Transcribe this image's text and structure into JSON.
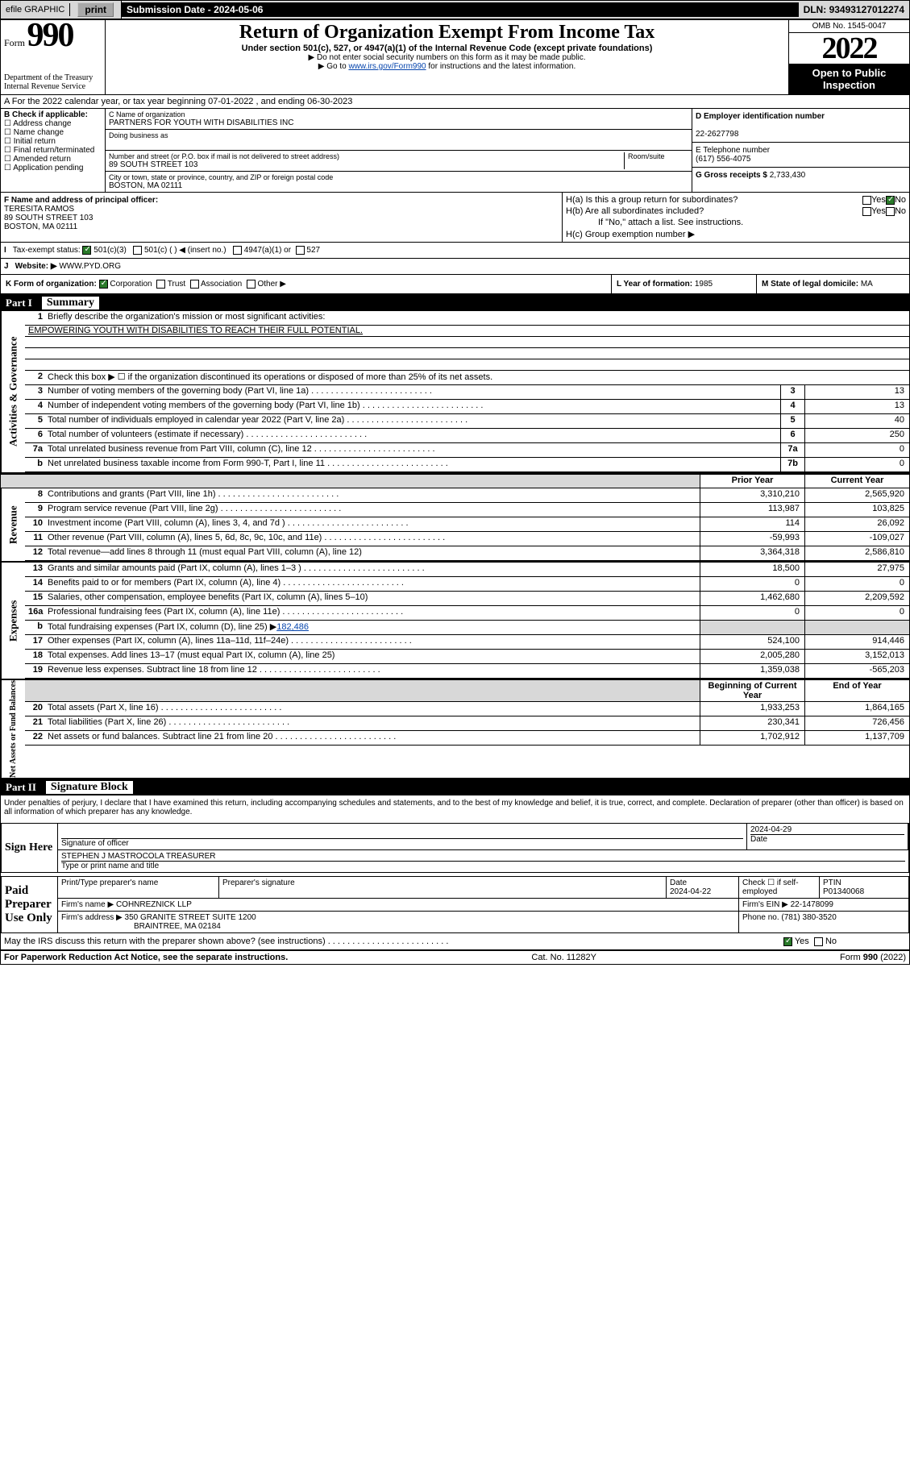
{
  "topbar": {
    "efile": "efile GRAPHIC",
    "print": "print",
    "subdate_label": "Submission Date - ",
    "subdate": "2024-05-06",
    "dln_label": "DLN: ",
    "dln": "93493127012274"
  },
  "header": {
    "form_label": "Form",
    "form_num": "990",
    "dept": "Department of the Treasury\nInternal Revenue Service",
    "title": "Return of Organization Exempt From Income Tax",
    "sub": "Under section 501(c), 527, or 4947(a)(1) of the Internal Revenue Code (except private foundations)",
    "note1": "▶ Do not enter social security numbers on this form as it may be made public.",
    "note2_pre": "▶ Go to ",
    "note2_link": "www.irs.gov/Form990",
    "note2_post": " for instructions and the latest information.",
    "omb": "OMB No. 1545-0047",
    "year": "2022",
    "open": "Open to Public Inspection"
  },
  "rowA": "A For the 2022 calendar year, or tax year beginning 07-01-2022   , and ending 06-30-2023",
  "colB": {
    "label": "B Check if applicable:",
    "items": [
      "Address change",
      "Name change",
      "Initial return",
      "Final return/terminated",
      "Amended return",
      "Application pending"
    ]
  },
  "colC": {
    "name_label": "C Name of organization",
    "name": "PARTNERS FOR YOUTH WITH DISABILITIES INC",
    "dba_label": "Doing business as",
    "addr_label": "Number and street (or P.O. box if mail is not delivered to street address)",
    "room_label": "Room/suite",
    "addr": "89 SOUTH STREET 103",
    "city_label": "City or town, state or province, country, and ZIP or foreign postal code",
    "city": "BOSTON, MA  02111"
  },
  "colD": {
    "ein_label": "D Employer identification number",
    "ein": "22-2627798",
    "tel_label": "E Telephone number",
    "tel": "(617) 556-4075",
    "gross_label": "G Gross receipts $ ",
    "gross": "2,733,430"
  },
  "colF": {
    "label": "F Name and address of principal officer:",
    "name": "TERESITA RAMOS",
    "addr1": "89 SOUTH STREET 103",
    "addr2": "BOSTON, MA  02111"
  },
  "colH": {
    "a": "H(a)  Is this a group return for subordinates?",
    "b": "H(b)  Are all subordinates included?",
    "b_note": "If \"No,\" attach a list. See instructions.",
    "c": "H(c)  Group exemption number ▶"
  },
  "rowI": {
    "label": "Tax-exempt status:",
    "opt1": "501(c)(3)",
    "opt2": "501(c) (  ) ◀ (insert no.)",
    "opt3": "4947(a)(1) or",
    "opt4": "527"
  },
  "rowJ": {
    "label": "Website: ▶",
    "val": "WWW.PYD.ORG"
  },
  "rowK": {
    "label": "K Form of organization:",
    "opts": [
      "Corporation",
      "Trust",
      "Association",
      "Other ▶"
    ],
    "year_label": "L Year of formation: ",
    "year": "1985",
    "state_label": "M State of legal domicile: ",
    "state": "MA"
  },
  "part1": {
    "num": "Part I",
    "title": "Summary"
  },
  "summary": {
    "l1_label": "Briefly describe the organization's mission or most significant activities:",
    "l1_val": "EMPOWERING YOUTH WITH DISABILITIES TO REACH THEIR FULL POTENTIAL.",
    "l2": "Check this box ▶ ☐  if the organization discontinued its operations or disposed of more than 25% of its net assets.",
    "l3": {
      "d": "Number of voting members of the governing body (Part VI, line 1a)",
      "v": "13"
    },
    "l4": {
      "d": "Number of independent voting members of the governing body (Part VI, line 1b)",
      "v": "13"
    },
    "l5": {
      "d": "Total number of individuals employed in calendar year 2022 (Part V, line 2a)",
      "v": "40"
    },
    "l6": {
      "d": "Total number of volunteers (estimate if necessary)",
      "v": "250"
    },
    "l7a": {
      "d": "Total unrelated business revenue from Part VIII, column (C), line 12",
      "v": "0"
    },
    "l7b": {
      "d": "Net unrelated business taxable income from Form 990-T, Part I, line 11",
      "v": "0"
    }
  },
  "revexp_hdr": {
    "prior": "Prior Year",
    "current": "Current Year"
  },
  "revenue": {
    "8": {
      "d": "Contributions and grants (Part VIII, line 1h)",
      "p": "3,310,210",
      "c": "2,565,920"
    },
    "9": {
      "d": "Program service revenue (Part VIII, line 2g)",
      "p": "113,987",
      "c": "103,825"
    },
    "10": {
      "d": "Investment income (Part VIII, column (A), lines 3, 4, and 7d )",
      "p": "114",
      "c": "26,092"
    },
    "11": {
      "d": "Other revenue (Part VIII, column (A), lines 5, 6d, 8c, 9c, 10c, and 11e)",
      "p": "-59,993",
      "c": "-109,027"
    },
    "12": {
      "d": "Total revenue—add lines 8 through 11 (must equal Part VIII, column (A), line 12)",
      "p": "3,364,318",
      "c": "2,586,810"
    }
  },
  "expenses": {
    "13": {
      "d": "Grants and similar amounts paid (Part IX, column (A), lines 1–3 )",
      "p": "18,500",
      "c": "27,975"
    },
    "14": {
      "d": "Benefits paid to or for members (Part IX, column (A), line 4)",
      "p": "0",
      "c": "0"
    },
    "15": {
      "d": "Salaries, other compensation, employee benefits (Part IX, column (A), lines 5–10)",
      "p": "1,462,680",
      "c": "2,209,592"
    },
    "16a": {
      "d": "Professional fundraising fees (Part IX, column (A), line 11e)",
      "p": "0",
      "c": "0"
    },
    "16b": {
      "d": "Total fundraising expenses (Part IX, column (D), line 25) ▶",
      "v": "182,486"
    },
    "17": {
      "d": "Other expenses (Part IX, column (A), lines 11a–11d, 11f–24e)",
      "p": "524,100",
      "c": "914,446"
    },
    "18": {
      "d": "Total expenses. Add lines 13–17 (must equal Part IX, column (A), line 25)",
      "p": "2,005,280",
      "c": "3,152,013"
    },
    "19": {
      "d": "Revenue less expenses. Subtract line 18 from line 12",
      "p": "1,359,038",
      "c": "-565,203"
    }
  },
  "netassets_hdr": {
    "b": "Beginning of Current Year",
    "e": "End of Year"
  },
  "netassets": {
    "20": {
      "d": "Total assets (Part X, line 16)",
      "p": "1,933,253",
      "c": "1,864,165"
    },
    "21": {
      "d": "Total liabilities (Part X, line 26)",
      "p": "230,341",
      "c": "726,456"
    },
    "22": {
      "d": "Net assets or fund balances. Subtract line 21 from line 20",
      "p": "1,702,912",
      "c": "1,137,709"
    }
  },
  "sidelabels": {
    "ag": "Activities & Governance",
    "rev": "Revenue",
    "exp": "Expenses",
    "na": "Net Assets or\nFund Balances"
  },
  "part2": {
    "num": "Part II",
    "title": "Signature Block"
  },
  "sig_decl": "Under penalties of perjury, I declare that I have examined this return, including accompanying schedules and statements, and to the best of my knowledge and belief, it is true, correct, and complete. Declaration of preparer (other than officer) is based on all information of which preparer has any knowledge.",
  "sign": {
    "left": "Sign Here",
    "sig_label": "Signature of officer",
    "date": "2024-04-29",
    "date_label": "Date",
    "name": "STEPHEN J MASTROCOLA  TREASURER",
    "name_label": "Type or print name and title"
  },
  "paid": {
    "left": "Paid Preparer Use Only",
    "r1": {
      "c1": "Print/Type preparer's name",
      "c2": "Preparer's signature",
      "c3": "Date",
      "c3v": "2024-04-22",
      "c4": "Check ☐ if self-employed",
      "c5": "PTIN",
      "c5v": "P01340068"
    },
    "r2": {
      "l": "Firm's name    ▶",
      "v": "COHNREZNICK LLP",
      "einl": "Firm's EIN ▶",
      "einv": "22-1478099"
    },
    "r3": {
      "l": "Firm's address ▶",
      "v1": "350 GRANITE STREET SUITE 1200",
      "v2": "BRAINTREE, MA  02184",
      "phl": "Phone no.",
      "phv": "(781) 380-3520"
    }
  },
  "discuss": "May the IRS discuss this return with the preparer shown above? (see instructions)",
  "footer": {
    "l": "For Paperwork Reduction Act Notice, see the separate instructions.",
    "m": "Cat. No. 11282Y",
    "r": "Form 990 (2022)"
  }
}
